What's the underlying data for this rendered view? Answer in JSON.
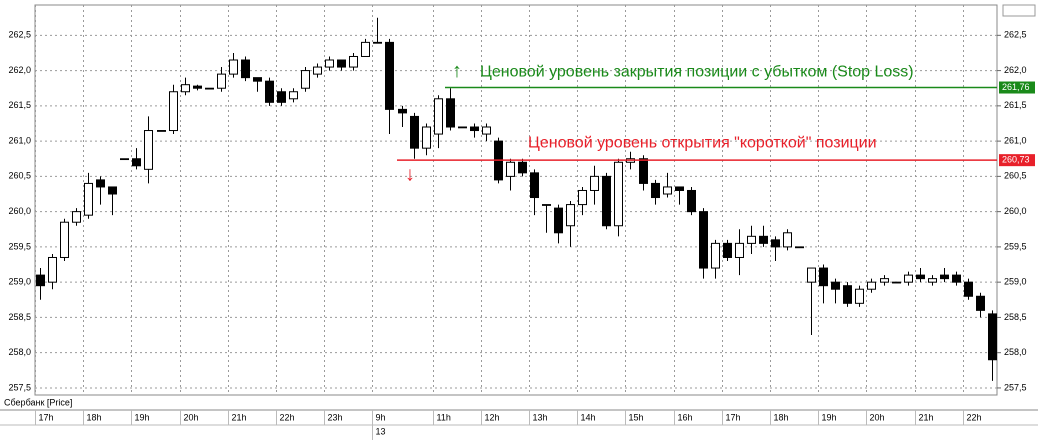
{
  "chart_data": {
    "type": "candlestick",
    "series_label": "Сбербанк [Price]",
    "categories": [
      "17h",
      null,
      null,
      null,
      "18h",
      null,
      null,
      null,
      "19h",
      null,
      null,
      null,
      "20h",
      null,
      null,
      null,
      "21h",
      null,
      null,
      null,
      "22h",
      null,
      null,
      null,
      "23h",
      null,
      null,
      null,
      "9h",
      null,
      null,
      null,
      null,
      "11h",
      null,
      null,
      null,
      "12h",
      null,
      null,
      null,
      "13h",
      null,
      null,
      null,
      "14h",
      null,
      null,
      null,
      "15h",
      null,
      null,
      null,
      "16h",
      null,
      null,
      null,
      "17h",
      null,
      null,
      null,
      "18h",
      null,
      null,
      null,
      "19h",
      null,
      null,
      null,
      "20h",
      null,
      null,
      null,
      "21h",
      null,
      null,
      null,
      "22h",
      null,
      null
    ],
    "dates": [
      null,
      null,
      null,
      null,
      null,
      null,
      null,
      null,
      null,
      null,
      null,
      null,
      null,
      null,
      null,
      null,
      null,
      null,
      null,
      null,
      null,
      null,
      null,
      null,
      null,
      null,
      null,
      null,
      "13",
      null,
      null,
      null,
      null,
      null,
      null,
      null,
      null,
      null,
      null,
      null,
      null,
      null,
      null,
      null,
      null,
      null,
      null,
      null,
      null,
      null,
      null,
      null,
      null,
      null,
      null,
      null,
      null,
      null,
      null,
      null,
      null,
      null,
      null,
      null,
      null,
      null,
      null,
      null,
      null,
      null,
      null,
      null,
      null,
      null,
      null,
      null,
      null,
      null,
      null,
      null
    ],
    "open": [
      259.1,
      259.0,
      259.35,
      259.85,
      259.95,
      260.45,
      260.35,
      260.75,
      260.75,
      260.6,
      261.15,
      261.15,
      261.7,
      261.78,
      261.75,
      261.75,
      261.95,
      262.15,
      261.9,
      261.85,
      261.7,
      261.6,
      261.75,
      261.95,
      262.05,
      262.15,
      262.05,
      262.2,
      262.4,
      262.4,
      261.45,
      261.35,
      260.9,
      261.1,
      261.6,
      261.2,
      261.2,
      261.1,
      261.0,
      260.5,
      260.7,
      260.55,
      260.1,
      260.05,
      259.8,
      260.1,
      260.3,
      260.5,
      259.8,
      260.7,
      260.75,
      260.4,
      260.25,
      260.35,
      260.3,
      260.0,
      259.2,
      259.55,
      259.35,
      259.55,
      259.65,
      259.6,
      259.5,
      259.5,
      259.0,
      259.2,
      259.0,
      258.95,
      258.7,
      258.9,
      259.0,
      259.0,
      259.0,
      259.1,
      259.0,
      259.1,
      259.1,
      259.0,
      258.8,
      258.55
    ],
    "high": [
      259.2,
      259.4,
      259.9,
      260.05,
      260.55,
      260.5,
      260.35,
      260.75,
      260.9,
      261.35,
      261.15,
      261.8,
      261.9,
      261.8,
      261.75,
      262.05,
      262.25,
      262.2,
      261.9,
      261.9,
      261.75,
      261.75,
      262.05,
      262.1,
      262.2,
      262.15,
      262.25,
      262.45,
      262.75,
      262.45,
      261.5,
      261.4,
      261.25,
      261.65,
      261.75,
      261.2,
      261.25,
      261.25,
      261.05,
      260.75,
      260.75,
      260.6,
      260.1,
      260.1,
      260.15,
      260.35,
      260.65,
      260.55,
      260.75,
      260.85,
      260.8,
      260.45,
      260.55,
      260.35,
      260.35,
      260.05,
      259.6,
      259.6,
      259.75,
      259.8,
      259.8,
      259.65,
      259.75,
      259.5,
      259.2,
      259.25,
      259.05,
      259.0,
      258.95,
      259.05,
      259.1,
      259.0,
      259.15,
      259.2,
      259.1,
      259.2,
      259.15,
      259.05,
      258.85,
      258.6
    ],
    "low": [
      258.75,
      258.9,
      259.3,
      259.8,
      259.9,
      260.1,
      259.95,
      260.75,
      260.6,
      260.4,
      261.15,
      261.1,
      261.65,
      261.72,
      261.75,
      261.7,
      261.9,
      261.85,
      261.7,
      261.5,
      261.5,
      261.55,
      261.7,
      261.9,
      262.0,
      262.0,
      262.0,
      262.2,
      262.4,
      261.1,
      261.2,
      260.75,
      260.8,
      260.9,
      261.15,
      261.2,
      261.05,
      261.0,
      260.4,
      260.3,
      260.5,
      259.95,
      259.7,
      259.55,
      259.5,
      259.95,
      260.1,
      259.75,
      259.65,
      260.6,
      260.3,
      260.1,
      260.2,
      260.1,
      259.95,
      259.05,
      259.05,
      259.3,
      259.1,
      259.4,
      259.5,
      259.3,
      259.45,
      259.5,
      258.25,
      258.7,
      258.7,
      258.65,
      258.65,
      258.85,
      258.95,
      259.0,
      258.95,
      259.0,
      258.95,
      259.0,
      258.95,
      258.75,
      258.5,
      257.6
    ],
    "close": [
      258.95,
      259.35,
      259.85,
      260.0,
      260.4,
      260.35,
      260.25,
      260.75,
      260.65,
      261.15,
      261.15,
      261.7,
      261.8,
      261.75,
      261.75,
      261.95,
      262.15,
      261.9,
      261.85,
      261.55,
      261.55,
      261.7,
      262.0,
      262.05,
      262.15,
      262.05,
      262.2,
      262.4,
      262.4,
      261.45,
      261.4,
      260.9,
      261.2,
      261.6,
      261.2,
      261.2,
      261.15,
      261.2,
      260.45,
      260.7,
      260.55,
      260.2,
      260.1,
      259.7,
      260.1,
      260.3,
      260.5,
      259.8,
      260.7,
      260.75,
      260.4,
      260.2,
      260.35,
      260.3,
      260.0,
      259.2,
      259.55,
      259.35,
      259.55,
      259.65,
      259.55,
      259.5,
      259.7,
      259.5,
      259.2,
      258.95,
      258.9,
      258.7,
      258.9,
      259.0,
      259.05,
      259.0,
      259.1,
      259.05,
      259.05,
      259.05,
      259.0,
      258.8,
      258.6,
      257.9
    ],
    "ylim": [
      257.4,
      262.93
    ],
    "yticks": [
      {
        "value": 257.5,
        "label": "257,5"
      },
      {
        "value": 258.0,
        "label": "258,0"
      },
      {
        "value": 258.5,
        "label": "258,5"
      },
      {
        "value": 259.0,
        "label": "259,0"
      },
      {
        "value": 259.5,
        "label": "259,5"
      },
      {
        "value": 260.0,
        "label": "260,0"
      },
      {
        "value": 260.5,
        "label": "260,5"
      },
      {
        "value": 261.0,
        "label": "261,0"
      },
      {
        "value": 261.5,
        "label": "261,5"
      },
      {
        "value": 262.0,
        "label": "262,0"
      },
      {
        "value": 262.5,
        "label": "262,5"
      }
    ],
    "grid": true,
    "levels": [
      {
        "value": 261.76,
        "label": "261,76",
        "text": "Ценовой уровень закрытия позиции с убытком (Stop Loss)",
        "color": "#1a8a1a",
        "arrow": "↑"
      },
      {
        "value": 260.73,
        "label": "260,73",
        "text": "Ценовой уровень открытия \"короткой\" позиции",
        "color": "#e8202a",
        "arrow": "↓"
      }
    ]
  }
}
